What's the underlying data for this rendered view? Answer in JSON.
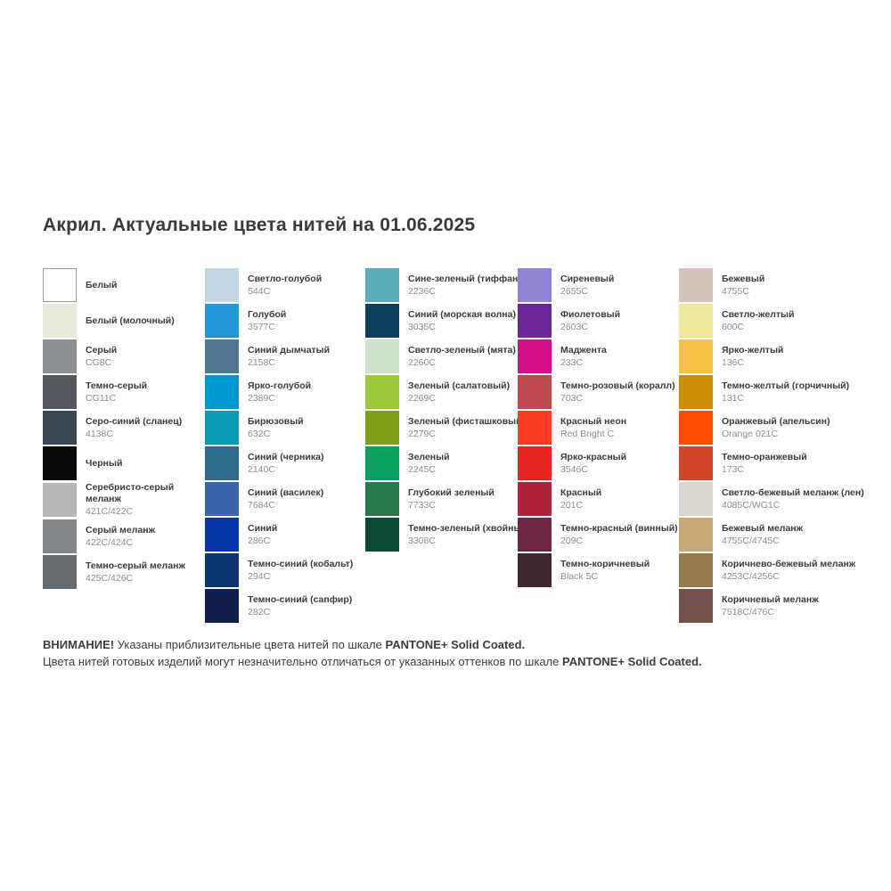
{
  "title": "Акрил. Актуальные цвета нитей на 01.06.2025",
  "columns": [
    {
      "items": [
        {
          "name": "Белый",
          "code": "",
          "color": "#ffffff",
          "border": true
        },
        {
          "name": "Белый (молочный)",
          "code": "",
          "color": "#eaeadd",
          "border": false
        },
        {
          "name": "Серый",
          "code": "CG8C",
          "color": "#8b9094",
          "border": false
        },
        {
          "name": "Темно-серый",
          "code": "CG11C",
          "color": "#54585e",
          "border": false
        },
        {
          "name": "Серо-синий (сланец)",
          "code": "4138C",
          "color": "#3a4653",
          "border": false
        },
        {
          "name": "Черный",
          "code": "",
          "color": "#0a0a0b",
          "border": false
        },
        {
          "name": "Серебристо-серый\nмеланж",
          "code": "421C/422C",
          "color": "#b5b8b7",
          "border": false
        },
        {
          "name": "Серый меланж",
          "code": "422C/424C",
          "color": "#82878a",
          "border": false
        },
        {
          "name": "Темно-серый меланж",
          "code": "425C/426C",
          "color": "#656b6f",
          "border": false
        }
      ]
    },
    {
      "items": [
        {
          "name": "Светло-голубой",
          "code": "544C",
          "color": "#c3d6e5",
          "border": false
        },
        {
          "name": "Голубой",
          "code": "3577C",
          "color": "#2496d5",
          "border": false
        },
        {
          "name": "Синий дымчатый",
          "code": "2158C",
          "color": "#4e7793",
          "border": false
        },
        {
          "name": "Ярко-голубой",
          "code": "2389C",
          "color": "#0099cf",
          "border": false
        },
        {
          "name": "Бирюзовый",
          "code": "632C",
          "color": "#0a9cb4",
          "border": false
        },
        {
          "name": "Синий (черника)",
          "code": "2140C",
          "color": "#2f6b8d",
          "border": false
        },
        {
          "name": "Синий (василек)",
          "code": "7684C",
          "color": "#3d64ad",
          "border": false
        },
        {
          "name": "Синий",
          "code": "286C",
          "color": "#0634a9",
          "border": false
        },
        {
          "name": "Темно-синий (кобальт)",
          "code": "294C",
          "color": "#0e3374",
          "border": false
        },
        {
          "name": "Темно-синий (сапфир)",
          "code": "282C",
          "color": "#101f4c",
          "border": false
        }
      ]
    },
    {
      "items": [
        {
          "name": "Сине-зеленый (тиффани)",
          "code": "2236C",
          "color": "#5badbc",
          "border": false
        },
        {
          "name": "Синий (морская волна)",
          "code": "3035C",
          "color": "#0f3e5a",
          "border": false
        },
        {
          "name": "Светло-зеленый (мята)",
          "code": "2260C",
          "color": "#cde3cd",
          "border": false
        },
        {
          "name": "Зеленый (салатовый)",
          "code": "2269C",
          "color": "#9cc83e",
          "border": false
        },
        {
          "name": "Зеленый (фисташковый)",
          "code": "2279C",
          "color": "#7f9f18",
          "border": false
        },
        {
          "name": "Зеленый",
          "code": "2245C",
          "color": "#0c9f62",
          "border": false
        },
        {
          "name": "Глубокий зеленый",
          "code": "7733C",
          "color": "#26794a",
          "border": false
        },
        {
          "name": "Темно-зеленый (хвойный)",
          "code": "3308C",
          "color": "#0b4a35",
          "border": false
        }
      ]
    },
    {
      "items": [
        {
          "name": "Сиреневый",
          "code": "2655C",
          "color": "#9383d7",
          "border": false
        },
        {
          "name": "Фиолетовый",
          "code": "2603C",
          "color": "#6a2896",
          "border": false
        },
        {
          "name": "Маджента",
          "code": "233C",
          "color": "#d40f8a",
          "border": false
        },
        {
          "name": "Темно-розовый (коралл)",
          "code": "703C",
          "color": "#bf4751",
          "border": false
        },
        {
          "name": "Красный неон",
          "code": "Red Bright C",
          "color": "#f93d22",
          "border": false
        },
        {
          "name": "Ярко-красный",
          "code": "3546C",
          "color": "#e42524",
          "border": false
        },
        {
          "name": "Красный",
          "code": "201C",
          "color": "#ae2439",
          "border": false
        },
        {
          "name": "Темно-красный (винный)",
          "code": "209C",
          "color": "#6e2845",
          "border": false
        },
        {
          "name": "Темно-коричневый",
          "code": "Black 5C",
          "color": "#402730",
          "border": false
        }
      ]
    },
    {
      "items": [
        {
          "name": "Бежевый",
          "code": "4755C",
          "color": "#d5c2bb",
          "border": false
        },
        {
          "name": "Светло-желтый",
          "code": "600C",
          "color": "#efe79a",
          "border": false
        },
        {
          "name": "Ярко-желтый",
          "code": "136C",
          "color": "#fac14a",
          "border": false
        },
        {
          "name": "Темно-желтый (горчичный)",
          "code": "131C",
          "color": "#cd8c06",
          "border": false
        },
        {
          "name": "Оранжевый (апельсин)",
          "code": "Orange 021C",
          "color": "#ff4d01",
          "border": false
        },
        {
          "name": "Темно-оранжевый",
          "code": "173C",
          "color": "#d14526",
          "border": false
        },
        {
          "name": "Светло-бежевый меланж (лен)",
          "code": "4085C/WG1C",
          "color": "#d9d7d0",
          "border": false
        },
        {
          "name": "Бежевый меланж",
          "code": "4755C/4745C",
          "color": "#c9a973",
          "border": false
        },
        {
          "name": "Коричнево-бежевый меланж",
          "code": "4253C/4256C",
          "color": "#977950",
          "border": false
        },
        {
          "name": "Коричневый меланж",
          "code": "7518C/476C",
          "color": "#74524a",
          "border": false
        }
      ]
    }
  ],
  "notes": [
    {
      "segments": [
        {
          "text": "ВНИМАНИЕ!",
          "bold": true
        },
        {
          "text": " Указаны приблизительные цвета нитей по шкале ",
          "bold": false
        },
        {
          "text": "PANTONE+ Solid Coated.",
          "bold": true
        }
      ]
    },
    {
      "segments": [
        {
          "text": "Цвета нитей готовых изделий могут незначительно отличаться от указанных оттенков по шкале ",
          "bold": false
        },
        {
          "text": "PANTONE+ Solid Coated.",
          "bold": true
        }
      ]
    }
  ]
}
